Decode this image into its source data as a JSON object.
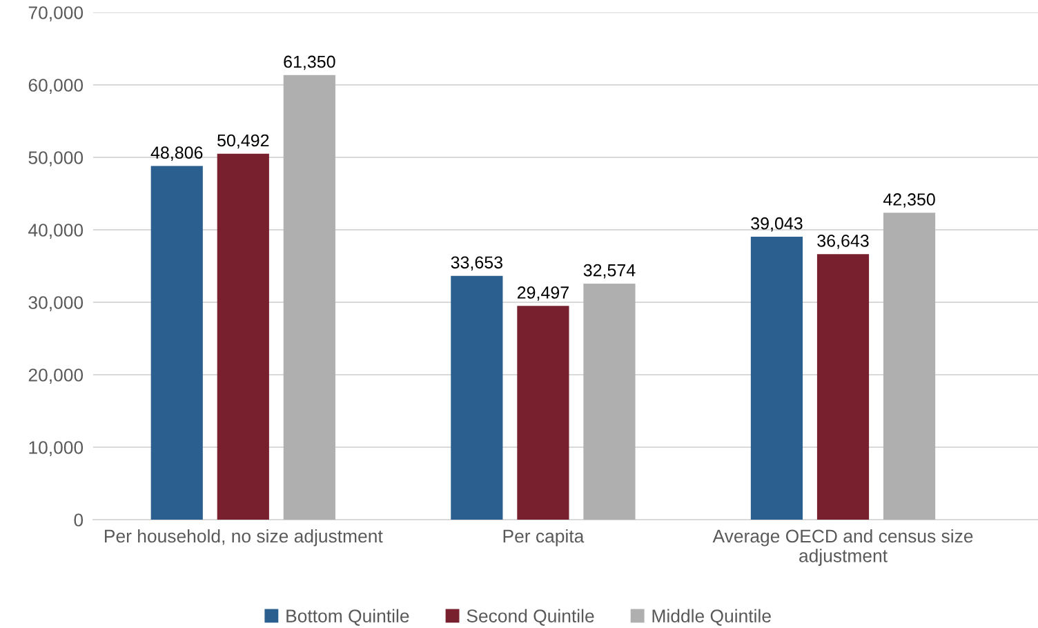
{
  "chart_data": {
    "type": "bar",
    "categories": [
      "Per household, no size adjustment",
      "Per capita",
      "Average OECD and census size\nadjustment"
    ],
    "series": [
      {
        "name": "Bottom Quintile",
        "color": "#2a5f8f",
        "values": [
          48806,
          33653,
          39043
        ],
        "value_labels": [
          "48,806",
          "33,653",
          "39,043"
        ]
      },
      {
        "name": "Second Quintile",
        "color": "#78202e",
        "values": [
          50492,
          29497,
          36643
        ],
        "value_labels": [
          "50,492",
          "29,497",
          "36,643"
        ]
      },
      {
        "name": "Middle Quintile",
        "color": "#afafaf",
        "values": [
          61350,
          32574,
          42350
        ],
        "value_labels": [
          "61,350",
          "32,574",
          "42,350"
        ]
      }
    ],
    "ylim": [
      0,
      70000
    ],
    "yticks": [
      {
        "value": 0,
        "label": "0"
      },
      {
        "value": 10000,
        "label": "10,000"
      },
      {
        "value": 20000,
        "label": "20,000"
      },
      {
        "value": 30000,
        "label": "30,000"
      },
      {
        "value": 40000,
        "label": "40,000"
      },
      {
        "value": 50000,
        "label": "50,000"
      },
      {
        "value": 60000,
        "label": "60,000"
      },
      {
        "value": 70000,
        "label": "70,000"
      }
    ],
    "grid": "y",
    "legend": "bottom"
  }
}
